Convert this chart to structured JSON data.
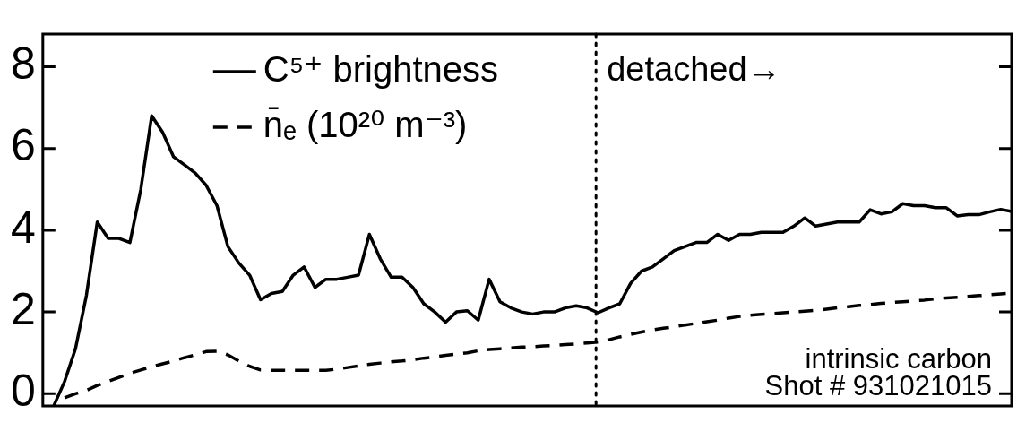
{
  "chart_data": {
    "type": "line",
    "categories": [
      null,
      null,
      null,
      null,
      null,
      null,
      null,
      null,
      null,
      null,
      null,
      null,
      null,
      null,
      null,
      null,
      null,
      null,
      null,
      null,
      null,
      null,
      null,
      null,
      null,
      null,
      null,
      null,
      null,
      null,
      null,
      null,
      null,
      null,
      null,
      null,
      null,
      null,
      null,
      null,
      null,
      null,
      null,
      null,
      null,
      null,
      null,
      null,
      null,
      null,
      null,
      null,
      null,
      null,
      null,
      null,
      null,
      null,
      null,
      null,
      null,
      null,
      null,
      null,
      null,
      null,
      null,
      null,
      null,
      null,
      null,
      null,
      null,
      null,
      null,
      null,
      null,
      null,
      null,
      null,
      null,
      null,
      null,
      null,
      null,
      null,
      null,
      null,
      null,
      null
    ],
    "series": [
      {
        "name": "C⁵⁺ brightness",
        "color": "#000000",
        "line_style": "solid",
        "values": [
          null,
          -0.3,
          0.3,
          1.1,
          2.4,
          4.2,
          3.8,
          3.8,
          3.7,
          5.0,
          6.8,
          6.4,
          5.8,
          5.6,
          5.4,
          5.1,
          4.6,
          3.6,
          3.2,
          2.9,
          2.3,
          2.45,
          2.5,
          2.9,
          3.1,
          2.6,
          2.8,
          2.8,
          2.85,
          2.9,
          3.9,
          3.3,
          2.85,
          2.85,
          2.6,
          2.2,
          2.0,
          1.75,
          2.0,
          2.03,
          1.8,
          2.8,
          2.25,
          2.1,
          2.0,
          1.95,
          2.0,
          2.0,
          2.1,
          2.15,
          2.1,
          1.98,
          2.1,
          2.2,
          2.7,
          3.0,
          3.1,
          3.3,
          3.5,
          3.6,
          3.7,
          3.7,
          3.9,
          3.75,
          3.9,
          3.9,
          3.95,
          3.95,
          3.95,
          4.1,
          4.3,
          4.1,
          4.15,
          4.2,
          4.2,
          4.2,
          4.5,
          4.4,
          4.45,
          4.65,
          4.6,
          4.6,
          4.55,
          4.55,
          4.35,
          4.38,
          4.38,
          4.45,
          4.51,
          4.46
        ]
      },
      {
        "name": "n̄ₑ (10²⁰ m⁻³)",
        "color": "#000000",
        "line_style": "dashed",
        "values": [
          null,
          null,
          -0.1,
          0.0,
          0.08,
          0.2,
          0.3,
          0.4,
          0.5,
          0.58,
          0.66,
          0.73,
          0.8,
          0.88,
          0.95,
          1.03,
          1.04,
          0.95,
          0.8,
          0.67,
          0.58,
          0.57,
          0.57,
          0.57,
          0.57,
          0.57,
          0.57,
          0.6,
          0.64,
          0.68,
          0.72,
          0.75,
          0.78,
          0.8,
          0.83,
          0.87,
          0.9,
          0.94,
          0.97,
          1.0,
          1.05,
          1.08,
          1.1,
          1.12,
          1.14,
          1.15,
          1.17,
          1.18,
          1.2,
          1.22,
          1.24,
          1.26,
          1.32,
          1.39,
          1.45,
          1.51,
          1.56,
          1.6,
          1.64,
          1.68,
          1.72,
          1.76,
          1.8,
          1.85,
          1.89,
          1.92,
          1.94,
          1.96,
          1.98,
          2.0,
          2.02,
          2.04,
          2.07,
          2.1,
          2.13,
          2.16,
          2.18,
          2.21,
          2.23,
          2.25,
          2.27,
          2.29,
          2.32,
          2.34,
          2.36,
          2.38,
          2.4,
          2.42,
          2.44,
          2.46
        ]
      }
    ],
    "ylim": [
      -0.3,
      8.8
    ],
    "yticks": [
      0,
      2,
      4,
      6,
      8
    ],
    "tick_labels": "y",
    "grid": false,
    "marker": "none",
    "legend": "top left",
    "annotations": [
      "detached→",
      "intrinsic carbon",
      "Shot # 931021015"
    ]
  }
}
